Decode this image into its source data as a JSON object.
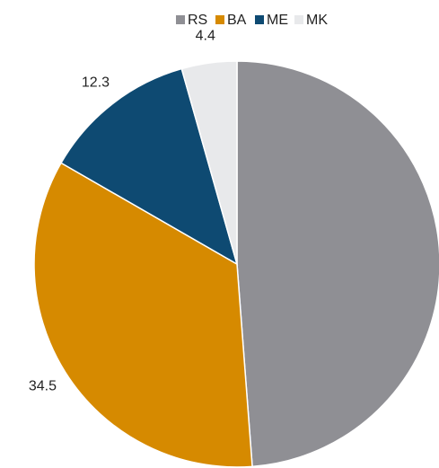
{
  "chart_data": {
    "type": "pie",
    "categories": [
      "RS",
      "BA",
      "ME",
      "MK"
    ],
    "values": [
      48.8,
      34.5,
      12.3,
      4.4
    ],
    "value_labels": [
      null,
      "34.5",
      "12.3",
      "4.4"
    ],
    "colors": [
      "#8f8f94",
      "#d68a00",
      "#0e4a72",
      "#e8e9eb"
    ],
    "legend": "top"
  }
}
